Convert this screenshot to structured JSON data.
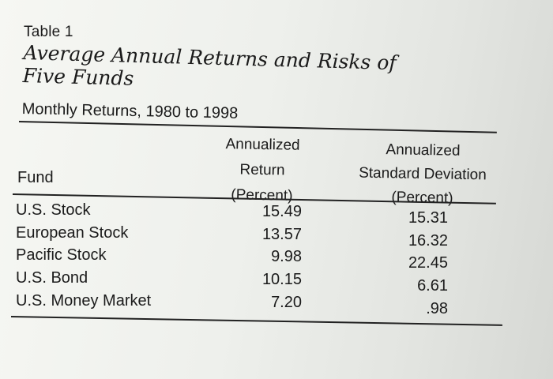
{
  "table": {
    "label": "Table 1",
    "title_line1": "Average Annual Returns and Risks of",
    "title_line2": "Five Funds",
    "subtitle": "Monthly Returns, 1980 to 1998",
    "headers": {
      "fund": "Fund",
      "return_lines": [
        "Annualized",
        "Return",
        "(Percent)"
      ],
      "std_lines": [
        "Annualized",
        "Standard Deviation",
        "(Percent)"
      ]
    },
    "rows": [
      {
        "fund": "U.S. Stock",
        "return": "15.49",
        "std": "15.31"
      },
      {
        "fund": "European Stock",
        "return": "13.57",
        "std": "16.32"
      },
      {
        "fund": "Pacific Stock",
        "return": "9.98",
        "std": "22.45"
      },
      {
        "fund": "U.S. Bond",
        "return": "10.15",
        "std": "6.61"
      },
      {
        "fund": "U.S. Money Market",
        "return": "7.20",
        "std": ".98"
      }
    ]
  }
}
